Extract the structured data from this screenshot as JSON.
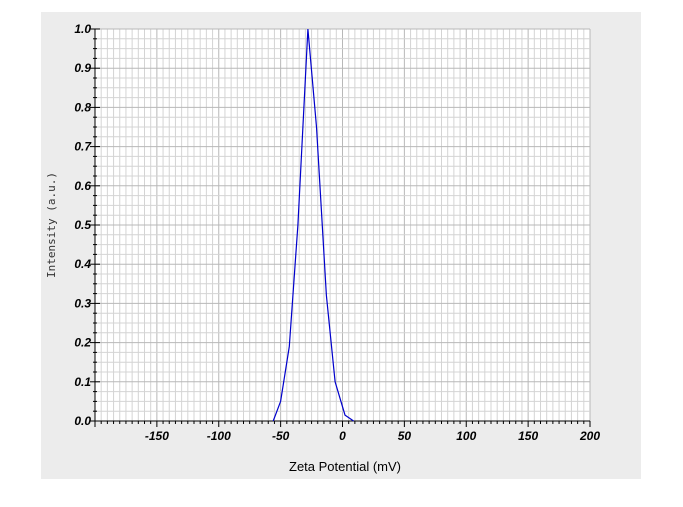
{
  "chart_data": {
    "type": "line",
    "title": "",
    "xlabel": "Zeta Potential (mV)",
    "ylabel": "Intensity (a.u.)",
    "xlim": [
      -200,
      200
    ],
    "ylim": [
      0,
      1.0
    ],
    "x_ticks": [
      -150,
      -100,
      -50,
      0,
      50,
      100,
      150,
      200
    ],
    "y_ticks": [
      "0.0",
      "0.1",
      "0.2",
      "0.3",
      "0.4",
      "0.5",
      "0.6",
      "0.7",
      "0.8",
      "0.9",
      "1.0"
    ],
    "grid": true,
    "series": [
      {
        "color": "#0000cc",
        "x": [
          -56,
          -50,
          -43,
          -36,
          -28,
          -21,
          -13,
          -6,
          2,
          9
        ],
        "y": [
          0.0,
          0.05,
          0.19,
          0.5,
          1.0,
          0.75,
          0.32,
          0.1,
          0.015,
          0.0
        ]
      }
    ]
  }
}
